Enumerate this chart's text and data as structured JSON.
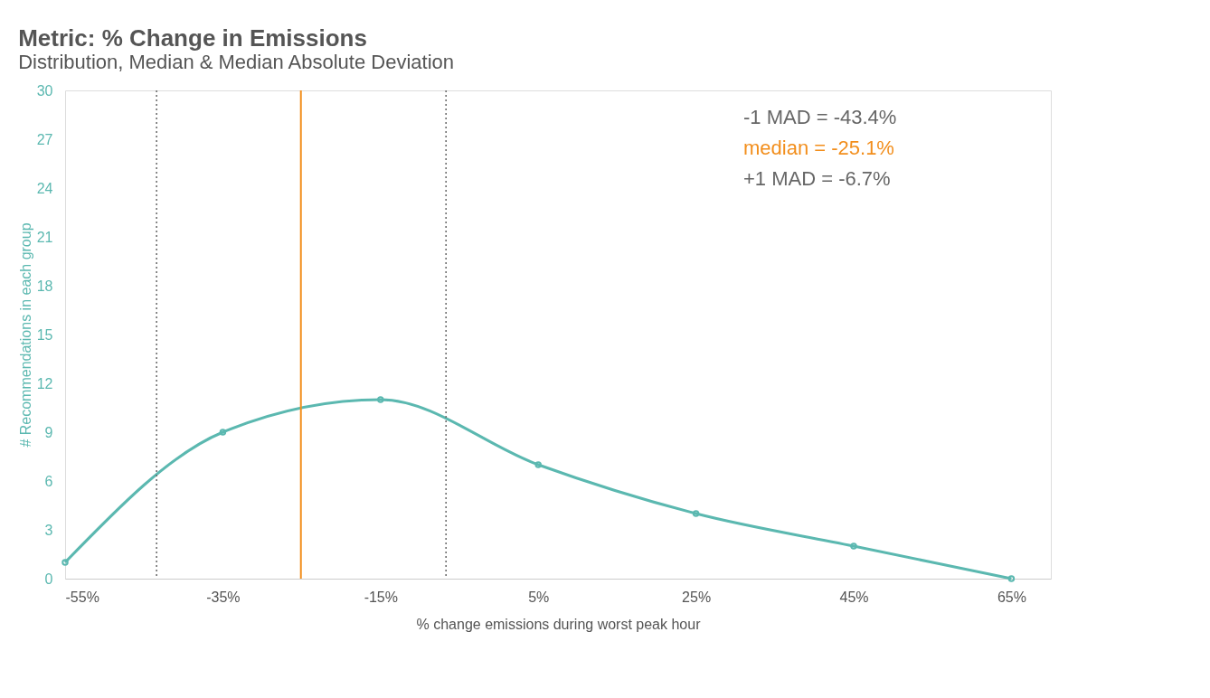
{
  "chart_data": {
    "type": "line",
    "title": "Metric: % Change in Emissions",
    "subtitle": "Distribution, Median & Median Absolute Deviation",
    "xlabel": "% change emissions during worst peak hour",
    "ylabel": "# Recommendations in each group",
    "x": [
      -55,
      -35,
      -15,
      5,
      25,
      45,
      65
    ],
    "series": [
      {
        "color": "#5bb8b0",
        "values": [
          1,
          9,
          11,
          7,
          4,
          2,
          0
        ]
      }
    ],
    "xlim": [
      -55,
      70
    ],
    "xticks": [
      {
        "value": -55,
        "label": "-55%"
      },
      {
        "value": -35,
        "label": "-35%"
      },
      {
        "value": -15,
        "label": "-15%"
      },
      {
        "value": 5,
        "label": "5%"
      },
      {
        "value": 25,
        "label": "25%"
      },
      {
        "value": 45,
        "label": "45%"
      },
      {
        "value": 65,
        "label": "65%"
      }
    ],
    "ylim": [
      0,
      30
    ],
    "yticks": [
      0,
      3,
      6,
      9,
      12,
      15,
      18,
      21,
      24,
      27,
      30
    ],
    "ref_lines": [
      {
        "axis": "x",
        "value": -43.4,
        "color": "#666666",
        "line_style": "dotted"
      },
      {
        "axis": "x",
        "value": -25.1,
        "color": "#f28e1c",
        "line_style": "solid"
      },
      {
        "axis": "x",
        "value": -6.7,
        "color": "#666666",
        "line_style": "dotted"
      }
    ],
    "annotations": [
      "-1 MAD = -43.4%",
      "median = -25.1%",
      "+1 MAD = -6.7%"
    ],
    "grid": false,
    "marker": "circle",
    "line_style": "solid"
  }
}
